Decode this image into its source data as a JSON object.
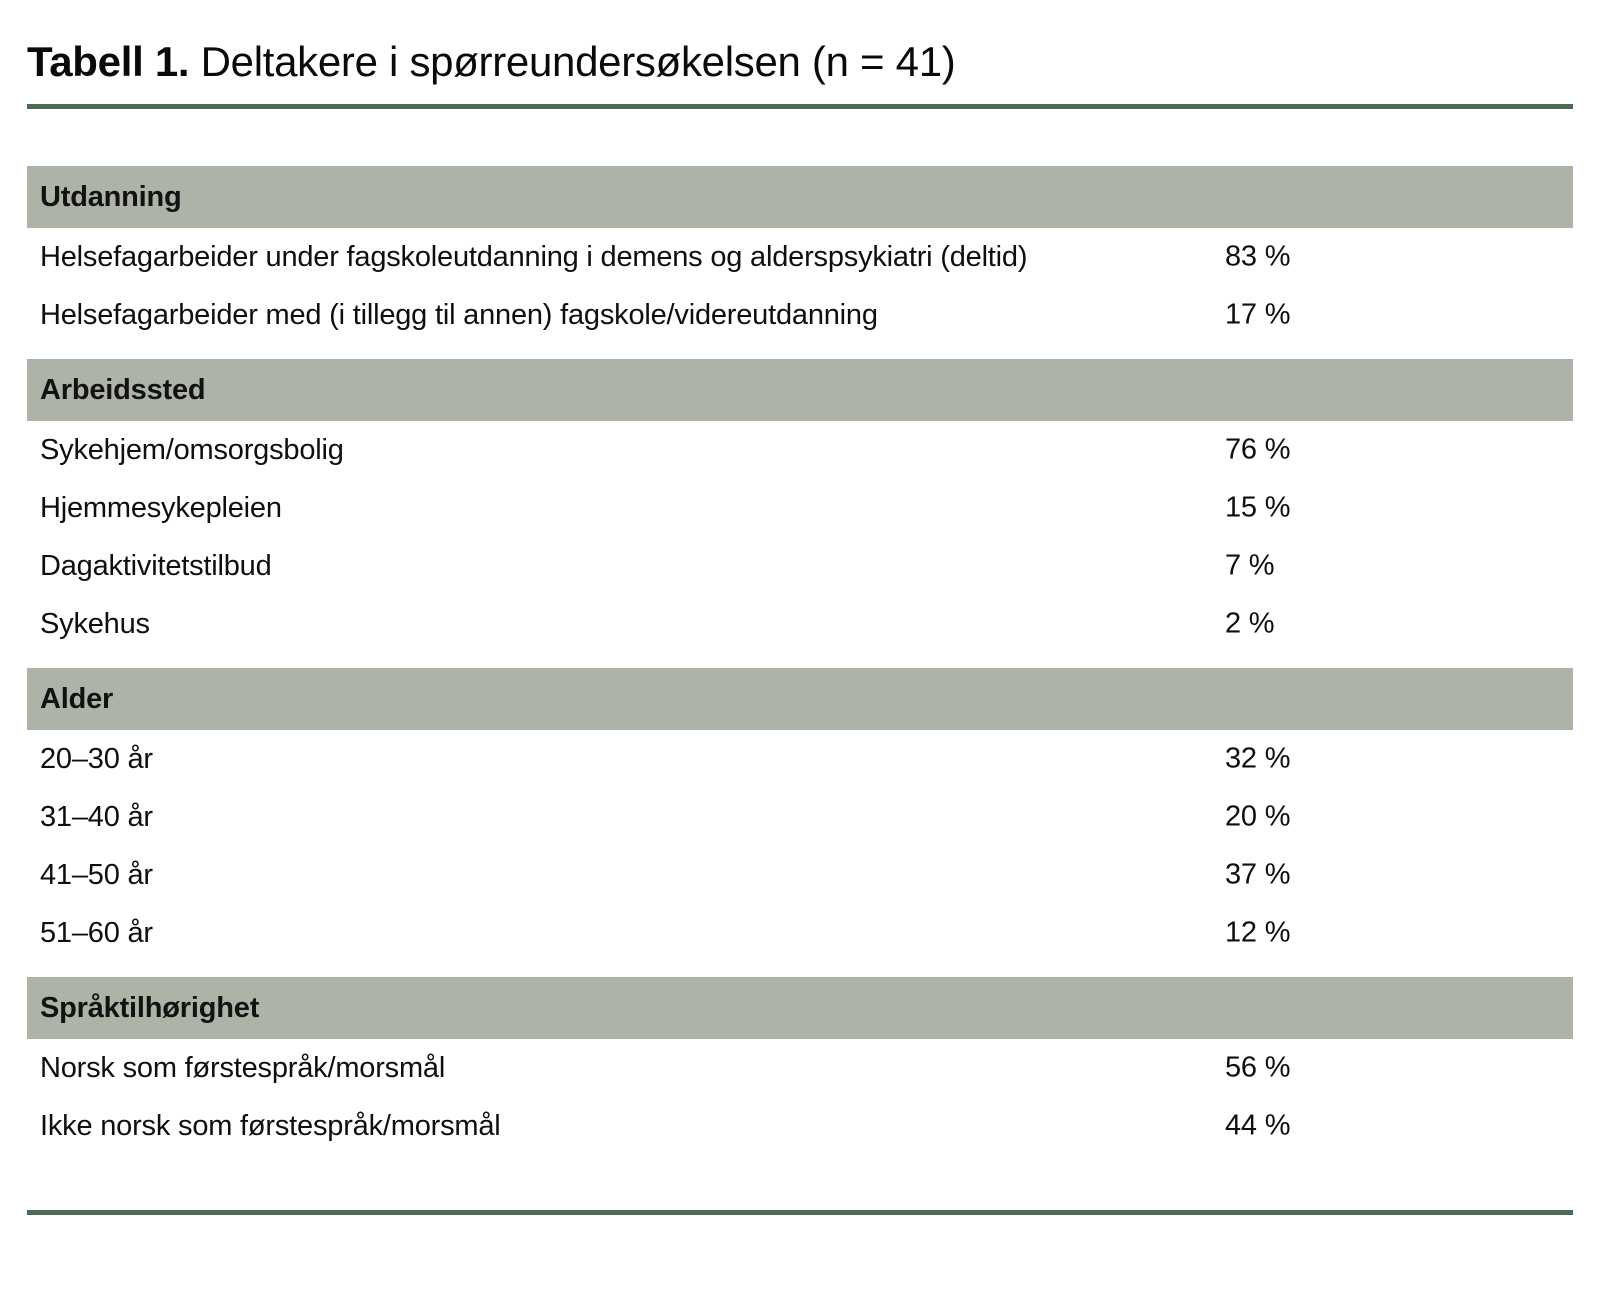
{
  "page": {
    "title": {
      "prefix": "Tabell 1.",
      "rest": " Deltakere i spørreundersøkelsen (n = 41)"
    }
  },
  "colors": {
    "header_band_bg": "#adb4a7",
    "rule_green": "#4e6b51",
    "text": "#0f0f0f"
  },
  "table": {
    "sections": [
      {
        "header": "Utdanning",
        "rows": [
          {
            "label": "Helsefagarbeider under fagskoleutdanning i demens og alderspsykiatri (deltid)",
            "value": "83 %"
          },
          {
            "label": "Helsefagarbeider med (i tillegg til annen) fagskole/videreutdanning",
            "value": "17 %"
          }
        ]
      },
      {
        "header": "Arbeidssted",
        "rows": [
          {
            "label": "Sykehjem/omsorgsbolig",
            "value": "76 %"
          },
          {
            "label": "Hjemmesykepleien",
            "value": "15 %"
          },
          {
            "label": "Dagaktivitetstilbud",
            "value": "7 %"
          },
          {
            "label": "Sykehus",
            "value": "2 %"
          }
        ]
      },
      {
        "header": "Alder",
        "rows": [
          {
            "label": "20–30 år",
            "value": "32 %"
          },
          {
            "label": "31–40 år",
            "value": "20 %"
          },
          {
            "label": "41–50 år",
            "value": "37 %"
          },
          {
            "label": "51–60 år",
            "value": "12 %"
          }
        ]
      },
      {
        "header": "Språktilhørighet",
        "rows": [
          {
            "label": "Norsk som førstespråk/morsmål",
            "value": "56 %"
          },
          {
            "label": "Ikke norsk som førstespråk/morsmål",
            "value": "44 %"
          }
        ]
      }
    ]
  }
}
